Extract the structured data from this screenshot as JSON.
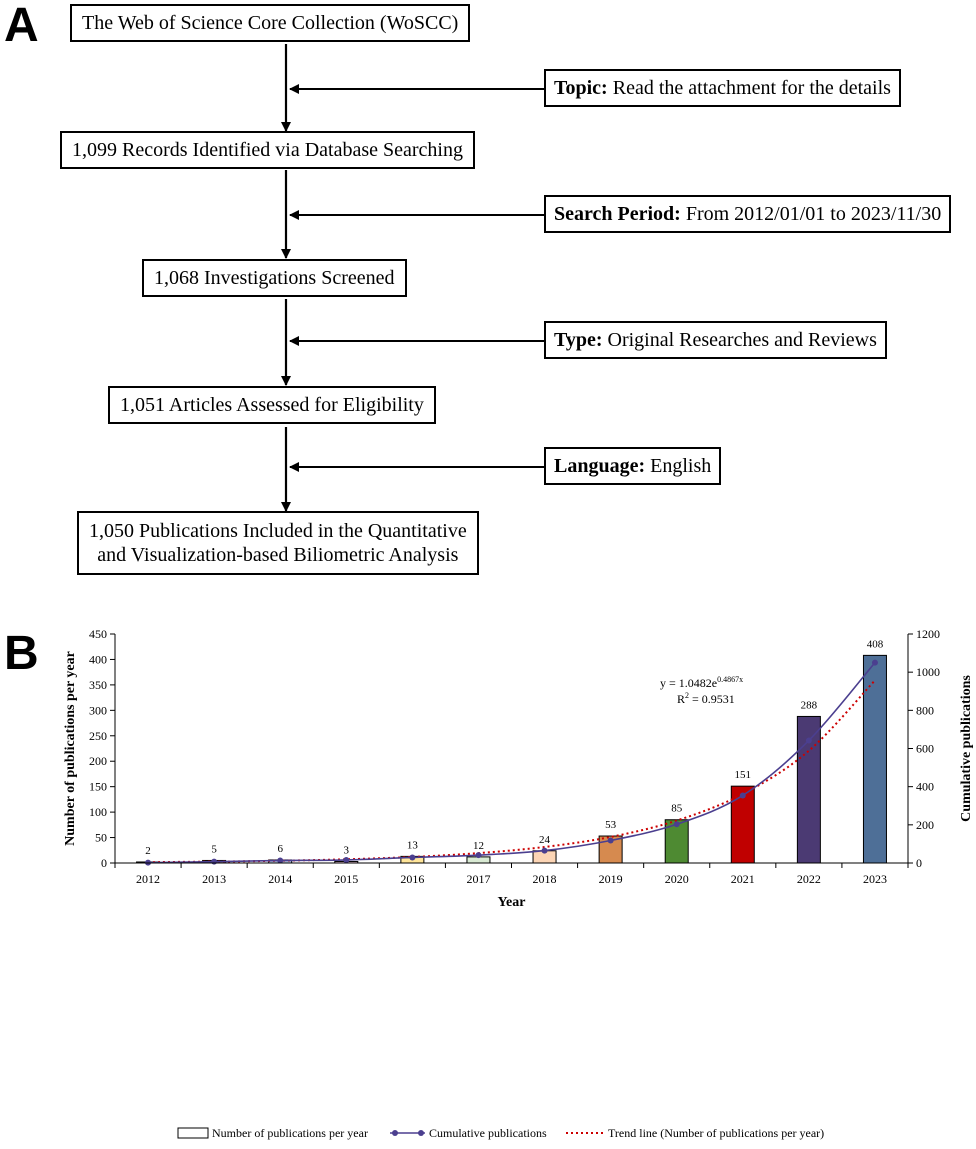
{
  "panel_a": {
    "letter": "A",
    "steps": [
      {
        "text": "The Web of Science Core Collection (WoSCC)"
      },
      {
        "text": "1,099 Records Identified via Database Searching"
      },
      {
        "text": "1,068 Investigations Screened"
      },
      {
        "text": "1,051 Articles Assessed for Eligibility"
      },
      {
        "line1": "1,050 Publications Included in the Quantitative",
        "line2": "and Visualization-based  Biliometric Analysis"
      }
    ],
    "filters": [
      {
        "label": "Topic:",
        "value": "Read the attachment for the details"
      },
      {
        "label": "Search Period:",
        "value": "From 2012/01/01 to 2023/11/30"
      },
      {
        "label": "Type:",
        "value": "Original Researches and Reviews"
      },
      {
        "label": "Language:",
        "value": "English"
      }
    ]
  },
  "panel_b": {
    "letter": "B"
  },
  "chart_data": {
    "type": "bar",
    "title": "",
    "xlabel": "Year",
    "ylabel": "Number of publications per year",
    "y2label": "Cumulative publications",
    "categories": [
      "2012",
      "2013",
      "2014",
      "2015",
      "2016",
      "2017",
      "2018",
      "2019",
      "2020",
      "2021",
      "2022",
      "2023"
    ],
    "ylim": [
      0,
      450
    ],
    "y2lim": [
      0,
      1200
    ],
    "yticks": [
      0,
      50,
      100,
      150,
      200,
      250,
      300,
      350,
      400,
      450
    ],
    "y2ticks": [
      0,
      200,
      400,
      600,
      800,
      1000,
      1200
    ],
    "series": [
      {
        "name": "Number of publications per year",
        "type": "bar",
        "axis": "left",
        "values": [
          2,
          5,
          6,
          3,
          13,
          12,
          24,
          53,
          85,
          151,
          288,
          408
        ],
        "colors": [
          "#ffffff",
          "#f2b880",
          "#b9cde4",
          "#eac4d4",
          "#ffe599",
          "#d9ead3",
          "#fcd5b5",
          "#d68a4f",
          "#4e8a32",
          "#c00000",
          "#4b3a73",
          "#4e6f97"
        ]
      },
      {
        "name": "Cumulative publications",
        "type": "line",
        "axis": "right",
        "color": "#4b3f8f",
        "values": [
          2,
          7,
          13,
          16,
          29,
          41,
          65,
          118,
          203,
          354,
          642,
          1050
        ]
      },
      {
        "name": "Trend line (Number of publications per year)",
        "type": "trend",
        "axis": "left",
        "color": "#cc0000",
        "values": [
          1.7,
          2.7,
          4.5,
          7.3,
          11.9,
          19.4,
          31.5,
          51.2,
          83.4,
          135.6,
          220.6,
          358.9
        ]
      }
    ],
    "data_labels": [
      "2",
      "5",
      "6",
      "3",
      "13",
      "12",
      "24",
      "53",
      "85",
      "151",
      "288",
      "408"
    ],
    "annotation": {
      "eq_base": "y = 1.0482e",
      "eq_exp": "0.4867x",
      "r2_prefix": "R",
      "r2_exp": "2",
      "r2_value": " = 0.9531"
    },
    "legend_position": "bottom",
    "grid": false
  }
}
